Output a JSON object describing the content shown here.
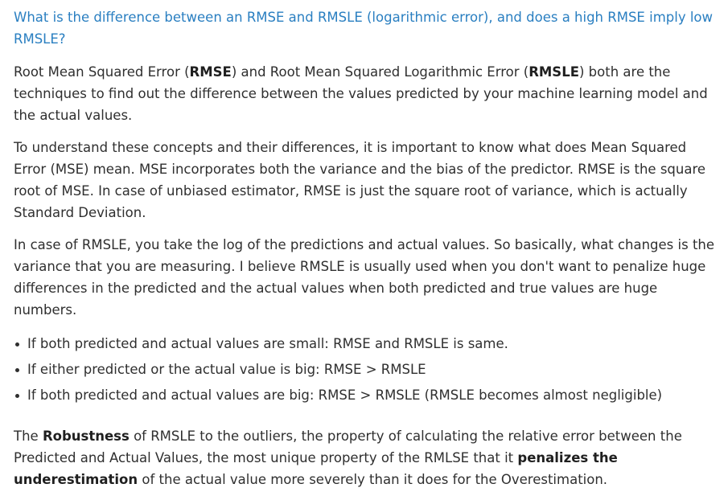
{
  "question": "What is the difference between an RMSE and RMSLE (logarithmic error), and does a high RMSE imply low RMSLE?",
  "para1": {
    "t1": "Root Mean Squared Error (",
    "b1": "RMSE",
    "t2": ") and Root Mean Squared Logarithmic Error (",
    "b2": "RMSLE",
    "t3": ") both are the techniques to find out the difference between the values predicted by your machine learning model and the actual values."
  },
  "para2": "To understand these concepts and their differences, it is important to know what does Mean Squared Error (MSE) mean. MSE incorporates both the variance and the bias of the predictor. RMSE is the square root of MSE. In case of unbiased estimator, RMSE is just the square root of variance, which is actually Standard Deviation.",
  "para3": "In case of RMSLE, you take the log of the predictions and actual values. So basically, what changes is the variance that you are measuring. I believe RMSLE is usually used when you don't want to penalize huge differences in the predicted and the actual values when both predicted and true values are huge numbers.",
  "bullets": [
    "If both predicted and actual values are small: RMSE and RMSLE is same.",
    "If either predicted or the actual value is big: RMSE > RMSLE",
    "If both predicted and actual values are big: RMSE > RMSLE (RMSLE becomes almost negligible)"
  ],
  "para4": {
    "t1": "The ",
    "b1": "Robustness",
    "t2": " of RMSLE to the outliers, the property of calculating the relative error between the Predicted and Actual Values, the most unique property of the RMLSE that it ",
    "b2": "penalizes the underestimation",
    "t3": " of the actual value more severely than it does for the Overestimation."
  }
}
